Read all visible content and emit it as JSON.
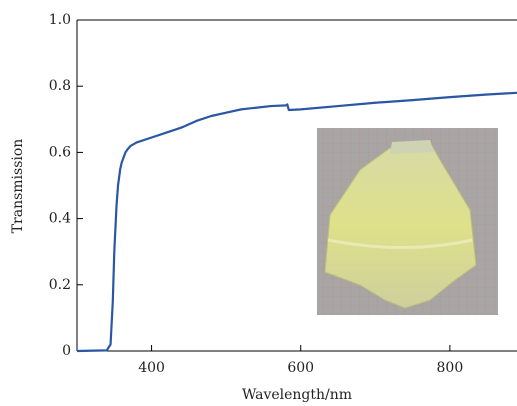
{
  "chart_data": {
    "type": "line",
    "x_label": "Wavelength/nm",
    "y_label": "Transmission",
    "x": [
      300,
      340,
      345,
      348,
      350,
      353,
      355,
      358,
      360,
      365,
      368,
      372,
      380,
      400,
      420,
      440,
      460,
      480,
      500,
      520,
      540,
      560,
      580,
      582,
      584,
      600,
      650,
      700,
      750,
      800,
      850,
      890
    ],
    "values": [
      0,
      0.002,
      0.02,
      0.15,
      0.3,
      0.44,
      0.5,
      0.55,
      0.57,
      0.6,
      0.61,
      0.62,
      0.63,
      0.645,
      0.66,
      0.675,
      0.695,
      0.71,
      0.72,
      0.73,
      0.735,
      0.74,
      0.742,
      0.745,
      0.728,
      0.73,
      0.74,
      0.75,
      0.758,
      0.767,
      0.775,
      0.78
    ],
    "color": "#2a56a3",
    "xlim": [
      300,
      890
    ],
    "ylim": [
      0,
      1
    ],
    "xticks": [
      400,
      600,
      800
    ],
    "yticks": [
      0,
      0.2,
      0.4,
      0.6,
      0.8,
      {
        "value": 1,
        "label": "1.0"
      }
    ]
  }
}
